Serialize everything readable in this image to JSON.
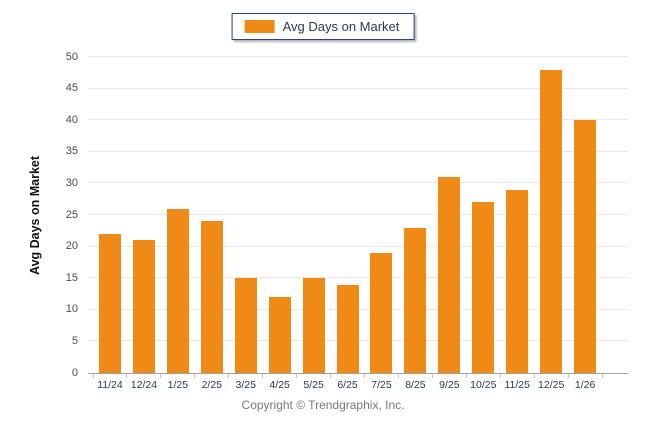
{
  "legend": {
    "label": "Avg Days on Market"
  },
  "y_axis": {
    "title": "Avg Days on Market",
    "ticks": [
      0,
      5,
      10,
      15,
      20,
      25,
      30,
      35,
      40,
      45,
      50
    ],
    "max": 50,
    "step": 5
  },
  "footer": {
    "copyright": "Copyright © Trendgraphix, Inc."
  },
  "colors": {
    "bar": "#EF8A17",
    "legend_border": "#24477E",
    "legend_text": "#2F3A4D",
    "grid_line": "#E9E9E9",
    "axis_line": "#A3A3A3",
    "tick": "#C9C9C9",
    "y_tick_label": "#4C4C55",
    "x_tick_label": "#2B3A55",
    "footer_text": "#7A7A7A",
    "background": "#FFFFFF"
  },
  "chart_data": {
    "type": "bar",
    "title": "",
    "series_name": "Avg Days on Market",
    "categories": [
      "11/24",
      "12/24",
      "1/25",
      "2/25",
      "3/25",
      "4/25",
      "5/25",
      "6/25",
      "7/25",
      "8/25",
      "9/25",
      "10/25",
      "11/25",
      "12/25",
      "1/26"
    ],
    "values": [
      22,
      21,
      26,
      24,
      15,
      12,
      15,
      14,
      19,
      23,
      31,
      27,
      29,
      48,
      40
    ],
    "xlabel": "",
    "ylabel": "Avg Days on Market",
    "ylim": [
      0,
      50
    ],
    "ytick_step": 5,
    "grid": true,
    "legend_position": "top-center",
    "bar_color": "#EF8A17"
  }
}
